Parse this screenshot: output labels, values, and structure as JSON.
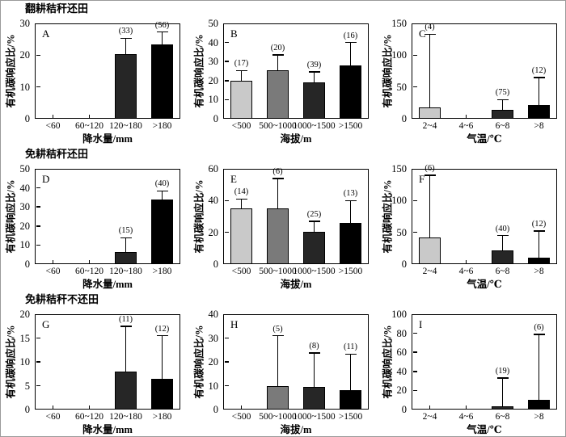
{
  "figure": {
    "background": "#ffffff",
    "border_color": "#9a9a9a",
    "axis_color": "#000000",
    "ylabel": "有机碳响应比/%",
    "bar_colors": [
      "#c9c9c9",
      "#7a7a7a",
      "#262626",
      "#000000"
    ],
    "row_titles": [
      "翻耕秸秆还田",
      "免耕秸秆还田",
      "免耕秸秆不还田"
    ]
  },
  "chart_data": [
    {
      "type": "bar",
      "panel": "A",
      "row": 0,
      "col": 0,
      "title": "翻耕秸秆还田",
      "xlabel": "降水量/mm",
      "ylabel": "有机碳响应比/%",
      "ylim": [
        0,
        30
      ],
      "yticks": [
        0,
        10,
        20,
        30
      ],
      "categories": [
        "<60",
        "60~120",
        "120~180",
        ">180"
      ],
      "values": [
        null,
        null,
        20.3,
        23.4
      ],
      "error_top": [
        null,
        null,
        25.3,
        27.3
      ],
      "counts": [
        null,
        null,
        "(33)",
        "(56)"
      ],
      "grid": false,
      "legend": "none"
    },
    {
      "type": "bar",
      "panel": "B",
      "row": 0,
      "col": 1,
      "title": "",
      "xlabel": "海拔/m",
      "ylabel": "有机碳响应比/%",
      "ylim": [
        0,
        50
      ],
      "yticks": [
        0,
        10,
        20,
        30,
        40,
        50
      ],
      "categories": [
        "<500",
        "500~1000",
        "1000~1500",
        ">1500"
      ],
      "values": [
        20,
        25.6,
        19.2,
        27.9
      ],
      "error_top": [
        25.3,
        33.4,
        24.6,
        40
      ],
      "counts": [
        "(17)",
        "(20)",
        "(39)",
        "(16)"
      ],
      "grid": false,
      "legend": "none"
    },
    {
      "type": "bar",
      "panel": "C",
      "row": 0,
      "col": 2,
      "title": "",
      "xlabel": "气温/℃",
      "ylabel": "有机碳响应比/%",
      "ylim": [
        0,
        150
      ],
      "yticks": [
        0,
        50,
        100,
        150
      ],
      "categories": [
        "2~4",
        "4~6",
        "6~8",
        ">8"
      ],
      "values": [
        18,
        null,
        14,
        21
      ],
      "error_top": [
        133,
        null,
        30,
        65
      ],
      "counts": [
        "(4)",
        null,
        "(75)",
        "(12)"
      ],
      "grid": false,
      "legend": "none"
    },
    {
      "type": "bar",
      "panel": "D",
      "row": 1,
      "col": 0,
      "title": "免耕秸秆还田",
      "xlabel": "降水量/mm",
      "ylabel": "有机碳响应比/%",
      "ylim": [
        0,
        50
      ],
      "yticks": [
        0,
        10,
        20,
        30,
        40,
        50
      ],
      "categories": [
        "<60",
        "60~120",
        "120~180",
        ">180"
      ],
      "values": [
        null,
        null,
        6.5,
        33.8
      ],
      "error_top": [
        null,
        null,
        13.8,
        38.4
      ],
      "counts": [
        null,
        null,
        "(15)",
        "(40)"
      ],
      "grid": false,
      "legend": "none"
    },
    {
      "type": "bar",
      "panel": "E",
      "row": 1,
      "col": 1,
      "title": "",
      "xlabel": "海拔/m",
      "ylabel": "有机碳响应比/%",
      "ylim": [
        0,
        60
      ],
      "yticks": [
        0,
        20,
        40,
        60
      ],
      "categories": [
        "<500",
        "500~1000",
        "1000~1500",
        ">1500"
      ],
      "values": [
        35,
        35,
        20.2,
        26
      ],
      "error_top": [
        41,
        54,
        27,
        40
      ],
      "counts": [
        "(14)",
        "(6)",
        "(25)",
        "(13)"
      ],
      "grid": false,
      "legend": "none"
    },
    {
      "type": "bar",
      "panel": "F",
      "row": 1,
      "col": 2,
      "title": "",
      "xlabel": "气温/℃",
      "ylabel": "有机碳响应比/%",
      "ylim": [
        0,
        150
      ],
      "yticks": [
        0,
        50,
        100,
        150
      ],
      "categories": [
        "2~4",
        "4~6",
        "6~8",
        ">8"
      ],
      "values": [
        42,
        null,
        21,
        10
      ],
      "error_top": [
        140,
        null,
        45,
        52
      ],
      "counts": [
        "(6)",
        null,
        "(40)",
        "(12)"
      ],
      "grid": false,
      "legend": "none"
    },
    {
      "type": "bar",
      "panel": "G",
      "row": 2,
      "col": 0,
      "title": "免耕秸秆不还田",
      "xlabel": "降水量/mm",
      "ylabel": "有机碳响应比/%",
      "ylim": [
        0,
        20
      ],
      "yticks": [
        0,
        5,
        10,
        15,
        20
      ],
      "categories": [
        "<60",
        "60~120",
        "120~180",
        ">180"
      ],
      "values": [
        null,
        null,
        8,
        6.4
      ],
      "error_top": [
        null,
        null,
        17.5,
        15.5
      ],
      "counts": [
        null,
        null,
        "(11)",
        "(12)"
      ],
      "grid": false,
      "legend": "none"
    },
    {
      "type": "bar",
      "panel": "H",
      "row": 2,
      "col": 1,
      "title": "",
      "xlabel": "海拔/m",
      "ylabel": "有机碳响应比/%",
      "ylim": [
        0,
        40
      ],
      "yticks": [
        0,
        10,
        20,
        30,
        40
      ],
      "categories": [
        "<500",
        "500~1000",
        "1000~1500",
        ">1500"
      ],
      "values": [
        null,
        9.8,
        9.4,
        8
      ],
      "error_top": [
        null,
        31,
        23.7,
        23.3
      ],
      "counts": [
        null,
        "(5)",
        "(8)",
        "(11)"
      ],
      "grid": false,
      "legend": "none"
    },
    {
      "type": "bar",
      "panel": "I",
      "row": 2,
      "col": 2,
      "title": "",
      "xlabel": "气温/℃",
      "ylabel": "有机碳响应比/%",
      "ylim": [
        0,
        100
      ],
      "yticks": [
        0,
        20,
        40,
        60,
        80,
        100
      ],
      "categories": [
        "2~4",
        "4~6",
        "6~8",
        ">8"
      ],
      "values": [
        null,
        null,
        3.5,
        10
      ],
      "error_top": [
        null,
        null,
        33,
        79
      ],
      "counts": [
        null,
        null,
        "(19)",
        "(6)"
      ],
      "grid": false,
      "legend": "none"
    }
  ]
}
